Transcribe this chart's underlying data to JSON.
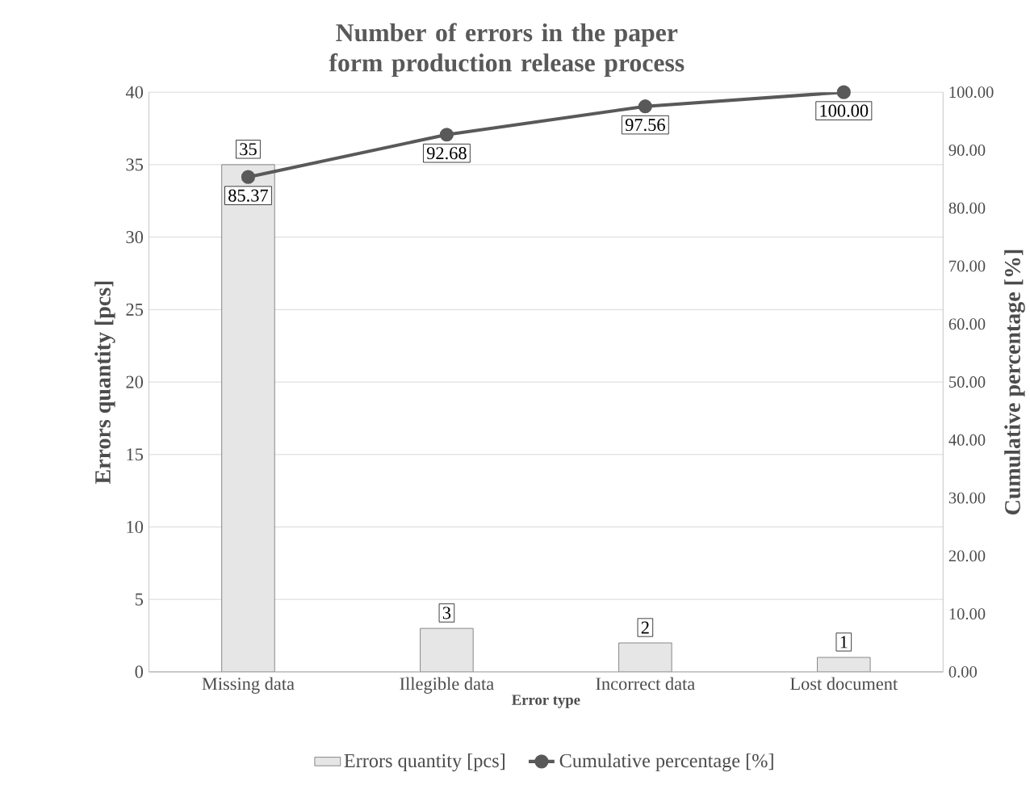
{
  "chart_data": {
    "type": "bar",
    "title": "Number of errors in the paper form production release process",
    "xlabel": "Error type",
    "ylabel": "Errors quantity  [pcs]",
    "y2label": "Cumulative percentage [%]",
    "categories": [
      "Missing data",
      "Illegible data",
      "Incorrect data",
      "Lost document"
    ],
    "series": [
      {
        "name": "Errors quantity [pcs]",
        "color": "#e6e6e6",
        "values": [
          35,
          3,
          2,
          1
        ],
        "value_labels": [
          "35",
          "3",
          "2",
          "1"
        ]
      },
      {
        "name": "Cumulative percentage [%]",
        "type": "line",
        "axis": "y2",
        "color": "#595959",
        "values": [
          85.37,
          92.68,
          97.56,
          100.0
        ],
        "value_labels": [
          "85.37",
          "92.68",
          "97.56",
          "100.00"
        ]
      }
    ],
    "ylim": [
      0,
      40
    ],
    "yticks": [
      0,
      5,
      10,
      15,
      20,
      25,
      30,
      35,
      40
    ],
    "y2lim": [
      0,
      100
    ],
    "y2ticks": [
      {
        "value": 0,
        "label": "0.00"
      },
      {
        "value": 10,
        "label": "10.00"
      },
      {
        "value": 20,
        "label": "20.00"
      },
      {
        "value": 30,
        "label": "30.00"
      },
      {
        "value": 40,
        "label": "40.00"
      },
      {
        "value": 50,
        "label": "50.00"
      },
      {
        "value": 60,
        "label": "60.00"
      },
      {
        "value": 70,
        "label": "70.00"
      },
      {
        "value": 80,
        "label": "80.00"
      },
      {
        "value": 90,
        "label": "90.00"
      },
      {
        "value": 100,
        "label": "100.00"
      }
    ],
    "grid": "y",
    "legend": "bottom",
    "marker": "circle",
    "line_style": "solid"
  }
}
